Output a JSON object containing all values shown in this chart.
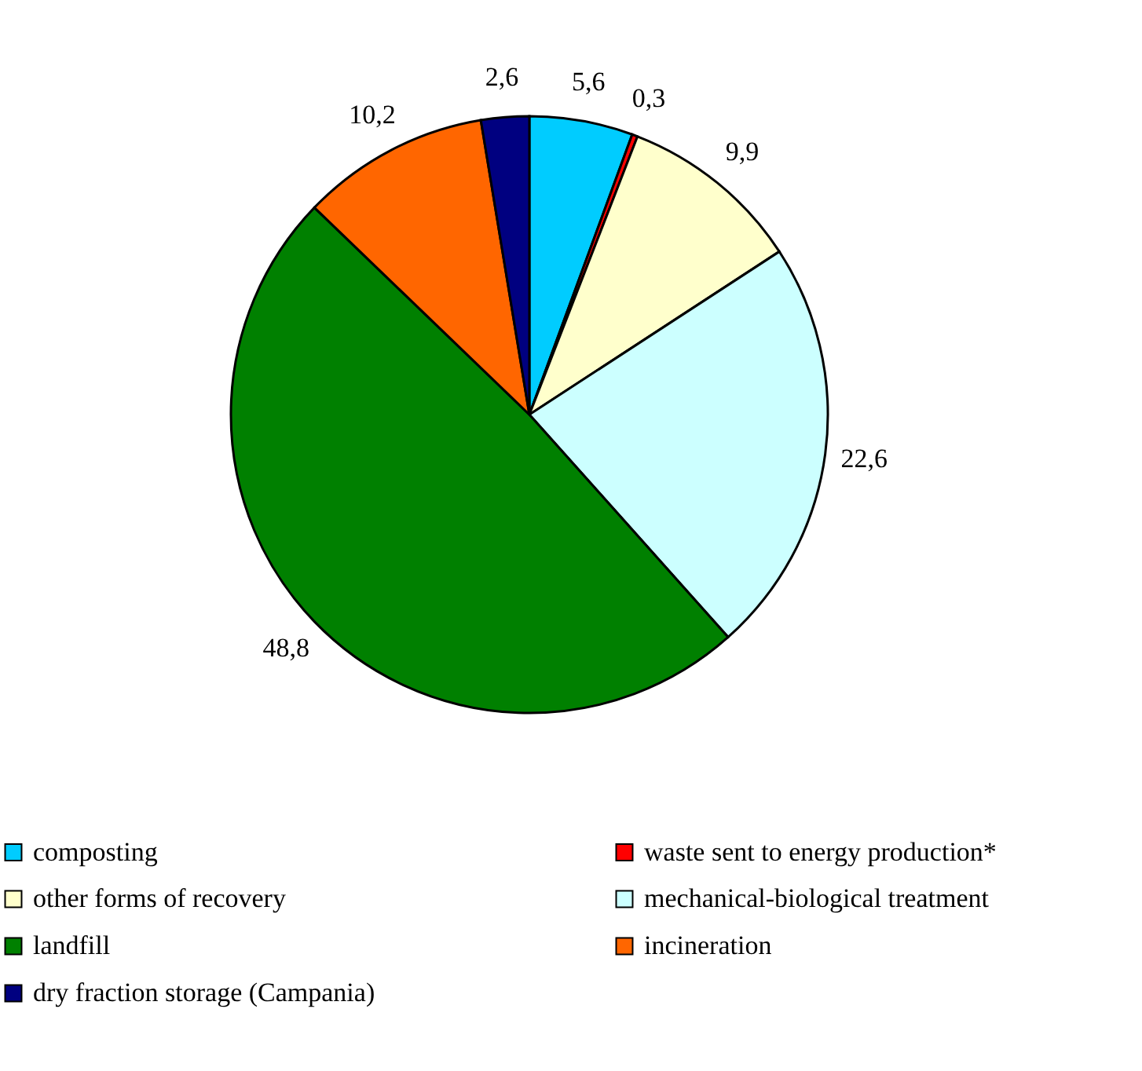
{
  "chart_data": {
    "type": "pie",
    "categories": [
      "composting",
      "waste sent to energy production*",
      "other forms of recovery",
      "mechanical-biological treatment",
      "landfill",
      "incineration",
      "dry fraction storage (Campania)"
    ],
    "values": [
      5.6,
      0.3,
      9.9,
      22.6,
      48.8,
      10.2,
      2.6
    ],
    "value_labels": [
      "5,6",
      "0,3",
      "9,9",
      "22,6",
      "48,8",
      "10,2",
      "2,6"
    ],
    "colors": [
      "#00ccff",
      "#ff0000",
      "#ffffcc",
      "#ccffff",
      "#008000",
      "#ff6600",
      "#000080"
    ],
    "legend": "bottom"
  }
}
